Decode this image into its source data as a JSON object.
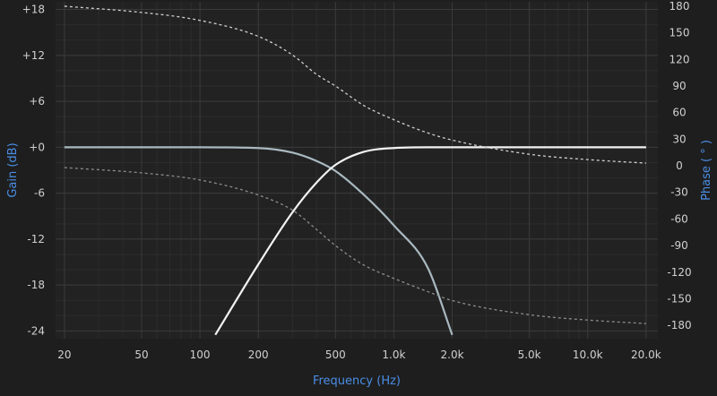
{
  "chart_data": {
    "type": "line",
    "xlabel": "Frequency (Hz)",
    "ylabel": "Gain (dB)",
    "y2label": "Phase ( ° )",
    "xscale": "log",
    "xlim": [
      18,
      23000
    ],
    "ylim": [
      -25,
      19
    ],
    "y2lim": [
      -195,
      185
    ],
    "grid": true,
    "x_ticks": [
      {
        "value": 20,
        "label": "20"
      },
      {
        "value": 50,
        "label": "50"
      },
      {
        "value": 100,
        "label": "100"
      },
      {
        "value": 200,
        "label": "200"
      },
      {
        "value": 500,
        "label": "500"
      },
      {
        "value": 1000,
        "label": "1.0k"
      },
      {
        "value": 2000,
        "label": "2.0k"
      },
      {
        "value": 5000,
        "label": "5.0k"
      },
      {
        "value": 10000,
        "label": "10.0k"
      },
      {
        "value": 20000,
        "label": "20.0k"
      }
    ],
    "y_ticks": [
      {
        "value": 18,
        "label": "+18"
      },
      {
        "value": 12,
        "label": "+12"
      },
      {
        "value": 6,
        "label": "+6"
      },
      {
        "value": 0,
        "label": "+0"
      },
      {
        "value": -6,
        "label": "-6"
      },
      {
        "value": -12,
        "label": "-12"
      },
      {
        "value": -18,
        "label": "-18"
      },
      {
        "value": -24,
        "label": "-24"
      }
    ],
    "y2_ticks": [
      {
        "value": 180,
        "label": "180"
      },
      {
        "value": 150,
        "label": "150"
      },
      {
        "value": 120,
        "label": "120"
      },
      {
        "value": 90,
        "label": "90"
      },
      {
        "value": 60,
        "label": "60"
      },
      {
        "value": 30,
        "label": "30"
      },
      {
        "value": 0,
        "label": "0"
      },
      {
        "value": -30,
        "label": "-30"
      },
      {
        "value": -60,
        "label": "-60"
      },
      {
        "value": -90,
        "label": "-90"
      },
      {
        "value": -120,
        "label": "-120"
      },
      {
        "value": -150,
        "label": "-150"
      },
      {
        "value": -180,
        "label": "-180"
      }
    ],
    "series": [
      {
        "axis": "left",
        "style": "solid",
        "color": "#a9b9c0",
        "x": [
          20,
          50,
          100,
          200,
          300,
          400,
          500,
          700,
          1000,
          1500,
          2000
        ],
        "y": [
          0,
          0,
          0,
          -0.1,
          -0.7,
          -1.8,
          -3.1,
          -6.2,
          -10.2,
          -15.8,
          -24.5
        ]
      },
      {
        "axis": "left",
        "style": "solid",
        "color": "#f2f2f2",
        "x": [
          120,
          200,
          300,
          400,
          500,
          700,
          1000,
          1500,
          2000,
          5000,
          20000
        ],
        "y": [
          -24.5,
          -15.3,
          -8.5,
          -4.6,
          -2.3,
          -0.6,
          -0.1,
          0,
          0,
          0,
          0
        ]
      },
      {
        "axis": "right",
        "style": "dashed",
        "color": "#d0d0d0",
        "x": [
          20,
          50,
          100,
          200,
          300,
          400,
          500,
          700,
          1000,
          1500,
          2000,
          5000,
          10000,
          20000
        ],
        "y": [
          180,
          173,
          164,
          146,
          125,
          103,
          90,
          68,
          52,
          37,
          29,
          13,
          7,
          3
        ]
      },
      {
        "axis": "right",
        "style": "dashed",
        "color": "#8c8c8c",
        "x": [
          20,
          50,
          100,
          200,
          300,
          400,
          500,
          700,
          1000,
          1500,
          2000,
          5000,
          10000,
          20000
        ],
        "y": [
          -2,
          -8,
          -16,
          -33,
          -50,
          -72,
          -90,
          -112,
          -127,
          -142,
          -152,
          -168,
          -174,
          -178
        ]
      }
    ]
  }
}
